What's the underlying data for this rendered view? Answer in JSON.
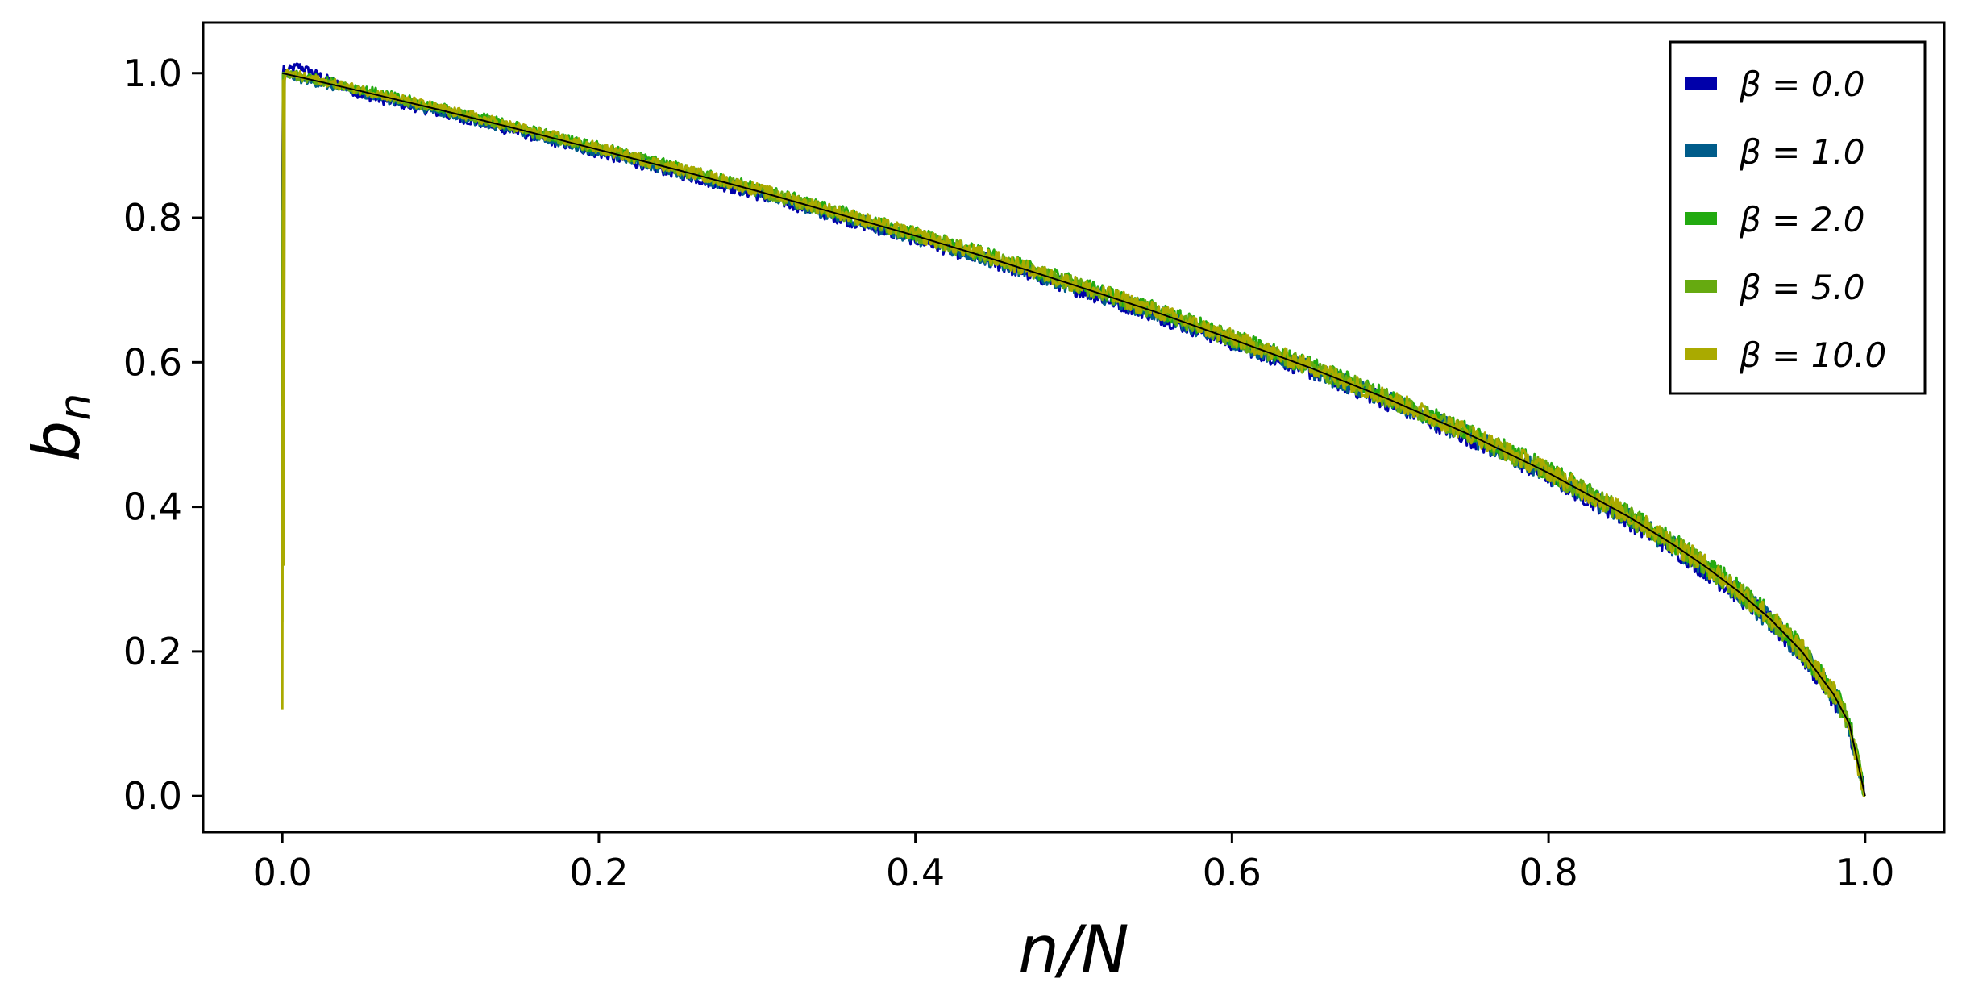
{
  "chart_data": {
    "type": "line",
    "title": "",
    "xlabel": "n/N",
    "ylabel_main": "b",
    "ylabel_sub": "n",
    "xlim": [
      -0.05,
      1.05
    ],
    "ylim": [
      -0.05,
      1.07
    ],
    "xticks": [
      0.0,
      0.2,
      0.4,
      0.6,
      0.8,
      1.0
    ],
    "xtick_labels": [
      "0.0",
      "0.2",
      "0.4",
      "0.6",
      "0.8",
      "1.0"
    ],
    "yticks": [
      0.0,
      0.2,
      0.4,
      0.6,
      0.8,
      1.0
    ],
    "ytick_labels": [
      "0.0",
      "0.2",
      "0.4",
      "0.6",
      "0.8",
      "1.0"
    ],
    "grid": false,
    "legend_position": "top-right",
    "x": [
      0.0,
      0.01,
      0.05,
      0.1,
      0.15,
      0.2,
      0.25,
      0.3,
      0.35,
      0.4,
      0.45,
      0.5,
      0.55,
      0.6,
      0.65,
      0.7,
      0.75,
      0.8,
      0.85,
      0.88,
      0.9,
      0.92,
      0.94,
      0.96,
      0.98,
      0.99,
      1.0
    ],
    "reference_curve": {
      "values": [
        1.0,
        0.995,
        0.975,
        0.949,
        0.922,
        0.894,
        0.866,
        0.837,
        0.806,
        0.775,
        0.742,
        0.707,
        0.671,
        0.632,
        0.592,
        0.548,
        0.5,
        0.447,
        0.387,
        0.346,
        0.316,
        0.283,
        0.245,
        0.2,
        0.141,
        0.1,
        0.0
      ],
      "color": "#000000"
    },
    "series": [
      {
        "name": "β = 0.0",
        "color": "#0000aa",
        "values": [
          1.0,
          1.01,
          0.97,
          0.945,
          0.918,
          0.89,
          0.862,
          0.833,
          0.802,
          0.771,
          0.738,
          0.703,
          0.667,
          0.628,
          0.588,
          0.544,
          0.496,
          0.443,
          0.383,
          0.342,
          0.312,
          0.279,
          0.241,
          0.196,
          0.137,
          0.096,
          0.0
        ],
        "start_values": [
          0.81,
          1.0
        ]
      },
      {
        "name": "β = 1.0",
        "color": "#005c8a",
        "values": [
          1.0,
          0.993,
          0.973,
          0.947,
          0.92,
          0.892,
          0.864,
          0.835,
          0.804,
          0.773,
          0.74,
          0.705,
          0.669,
          0.63,
          0.59,
          0.546,
          0.498,
          0.445,
          0.385,
          0.344,
          0.314,
          0.281,
          0.243,
          0.198,
          0.139,
          0.098,
          0.0
        ],
        "start_values": [
          0.62,
          1.0
        ]
      },
      {
        "name": "β = 2.0",
        "color": "#22aa10",
        "values": [
          1.0,
          0.998,
          0.978,
          0.952,
          0.925,
          0.897,
          0.869,
          0.84,
          0.809,
          0.778,
          0.745,
          0.71,
          0.674,
          0.635,
          0.595,
          0.551,
          0.503,
          0.45,
          0.39,
          0.349,
          0.319,
          0.286,
          0.248,
          0.203,
          0.144,
          0.103,
          0.0
        ],
        "start_values": [
          0.54,
          1.0
        ]
      },
      {
        "name": "β = 5.0",
        "color": "#66aa10",
        "values": [
          1.0,
          0.996,
          0.976,
          0.95,
          0.923,
          0.895,
          0.867,
          0.838,
          0.807,
          0.776,
          0.743,
          0.708,
          0.672,
          0.633,
          0.593,
          0.549,
          0.501,
          0.448,
          0.388,
          0.347,
          0.317,
          0.284,
          0.246,
          0.201,
          0.142,
          0.101,
          0.0
        ],
        "start_values": [
          0.24,
          1.0
        ]
      },
      {
        "name": "β = 10.0",
        "color": "#aaaa00",
        "values": [
          1.0,
          0.997,
          0.977,
          0.951,
          0.924,
          0.896,
          0.868,
          0.839,
          0.808,
          0.777,
          0.744,
          0.709,
          0.673,
          0.634,
          0.594,
          0.55,
          0.502,
          0.449,
          0.389,
          0.348,
          0.318,
          0.285,
          0.247,
          0.202,
          0.143,
          0.102,
          0.0
        ],
        "start_values": [
          0.12,
          0.99
        ]
      }
    ]
  }
}
